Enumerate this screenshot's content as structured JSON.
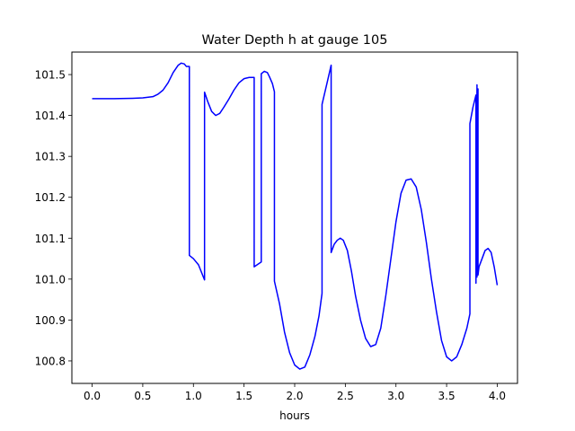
{
  "chart_data": {
    "type": "line",
    "title": "Water Depth h at gauge 105",
    "xlabel": "hours",
    "ylabel": "",
    "xlim": [
      -0.2,
      4.2
    ],
    "ylim": [
      100.745,
      101.555
    ],
    "xticks": [
      0.0,
      0.5,
      1.0,
      1.5,
      2.0,
      2.5,
      3.0,
      3.5,
      4.0
    ],
    "xtick_labels": [
      "0.0",
      "0.5",
      "1.0",
      "1.5",
      "2.0",
      "2.5",
      "3.0",
      "3.5",
      "4.0"
    ],
    "yticks": [
      100.8,
      100.9,
      101.0,
      101.1,
      101.2,
      101.3,
      101.4,
      101.5
    ],
    "ytick_labels": [
      "100.8",
      "100.9",
      "101.0",
      "101.1",
      "101.2",
      "101.3",
      "101.4",
      "101.5"
    ],
    "grid": false,
    "series": [
      {
        "color": "#0000ff",
        "x": [
          0.0,
          0.2,
          0.4,
          0.5,
          0.6,
          0.65,
          0.7,
          0.75,
          0.8,
          0.85,
          0.88,
          0.91,
          0.93,
          0.96,
          0.96,
          1.0,
          1.05,
          1.11,
          1.11,
          1.14,
          1.18,
          1.22,
          1.26,
          1.3,
          1.35,
          1.4,
          1.45,
          1.5,
          1.55,
          1.6,
          1.6,
          1.67,
          1.67,
          1.7,
          1.73,
          1.75,
          1.78,
          1.8,
          1.8,
          1.85,
          1.9,
          1.95,
          2.0,
          2.05,
          2.1,
          2.15,
          2.2,
          2.24,
          2.27,
          2.27,
          2.32,
          2.36,
          2.36,
          2.39,
          2.42,
          2.45,
          2.48,
          2.52,
          2.56,
          2.6,
          2.65,
          2.7,
          2.75,
          2.8,
          2.85,
          2.9,
          2.95,
          3.0,
          3.05,
          3.1,
          3.15,
          3.2,
          3.25,
          3.3,
          3.35,
          3.4,
          3.45,
          3.5,
          3.55,
          3.6,
          3.65,
          3.7,
          3.73,
          3.73,
          3.76,
          3.79,
          3.79,
          3.8,
          3.8,
          3.81,
          3.81,
          3.82,
          3.85,
          3.88,
          3.91,
          3.94,
          3.97,
          4.0
        ],
        "y": [
          101.441,
          101.441,
          101.442,
          101.443,
          101.446,
          101.452,
          101.462,
          101.48,
          101.505,
          101.523,
          101.528,
          101.526,
          101.52,
          101.52,
          101.058,
          101.05,
          101.035,
          100.998,
          101.457,
          101.435,
          101.41,
          101.4,
          101.405,
          101.42,
          101.44,
          101.462,
          101.48,
          101.49,
          101.493,
          101.493,
          101.03,
          101.042,
          101.502,
          101.508,
          101.505,
          101.495,
          101.478,
          101.458,
          100.995,
          100.94,
          100.87,
          100.82,
          100.79,
          100.78,
          100.785,
          100.815,
          100.86,
          100.91,
          100.965,
          101.427,
          101.48,
          101.523,
          101.065,
          101.085,
          101.095,
          101.1,
          101.095,
          101.07,
          101.02,
          100.96,
          100.9,
          100.855,
          100.835,
          100.84,
          100.88,
          100.96,
          101.05,
          101.14,
          101.21,
          101.242,
          101.245,
          101.225,
          101.17,
          101.09,
          101.0,
          100.92,
          100.85,
          100.81,
          100.8,
          100.81,
          100.84,
          100.88,
          100.915,
          101.38,
          101.42,
          101.45,
          100.99,
          101.475,
          101.005,
          101.465,
          101.01,
          101.03,
          101.05,
          101.07,
          101.075,
          101.065,
          101.03,
          100.985
        ]
      }
    ]
  }
}
